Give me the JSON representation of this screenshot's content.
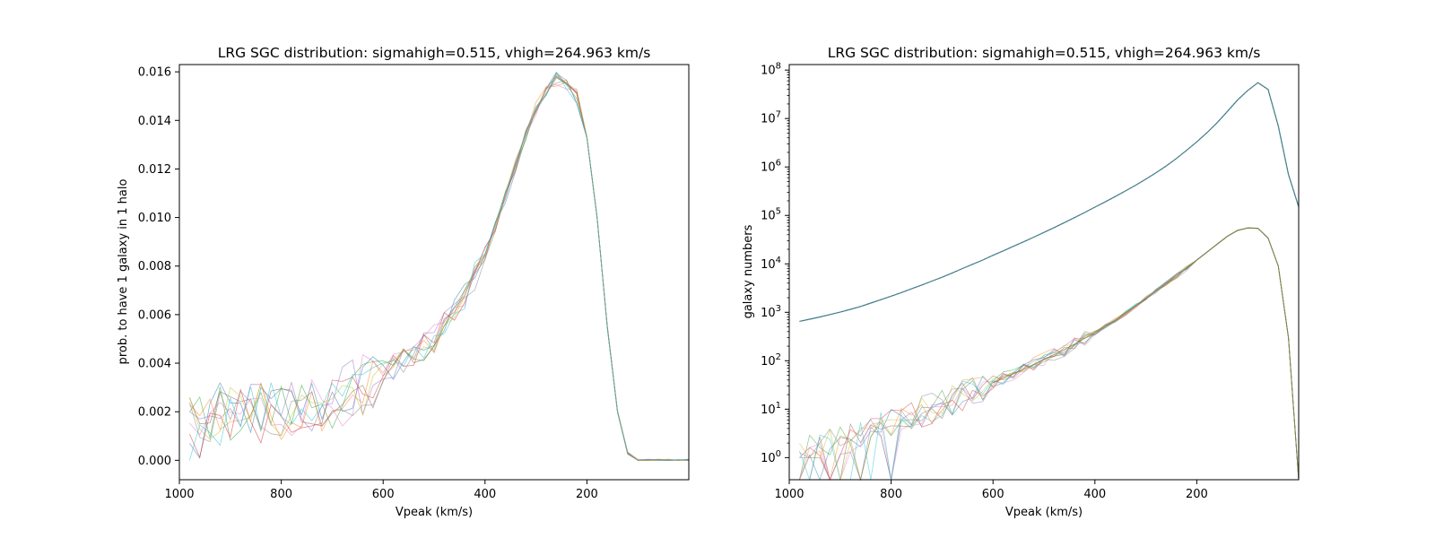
{
  "chart_data": [
    {
      "type": "line",
      "title": "LRG SGC distribution: sigmahigh=0.515, vhigh=264.963 km/s",
      "xlabel": "Vpeak (km/s)",
      "ylabel": "prob. to have 1 galaxy in 1 halo",
      "xlim": [
        1000,
        0
      ],
      "ylim": [
        -0.0008,
        0.0163
      ],
      "yscale": "linear",
      "grid": false,
      "x_ticks": [
        1000,
        800,
        600,
        400,
        200
      ],
      "y_ticks": [
        0.0,
        0.002,
        0.004,
        0.006,
        0.008,
        0.01,
        0.012,
        0.014,
        0.016
      ],
      "y_tick_labels": [
        "0.000",
        "0.002",
        "0.004",
        "0.006",
        "0.008",
        "0.010",
        "0.012",
        "0.014",
        "0.016"
      ],
      "x": [
        980,
        960,
        940,
        920,
        900,
        880,
        860,
        840,
        820,
        800,
        780,
        760,
        740,
        720,
        700,
        680,
        660,
        640,
        620,
        600,
        580,
        560,
        540,
        520,
        500,
        480,
        460,
        440,
        420,
        400,
        380,
        360,
        340,
        320,
        300,
        280,
        260,
        240,
        220,
        200,
        180,
        160,
        140,
        120,
        100,
        80,
        60,
        40,
        20,
        0
      ],
      "mean": [
        0.0018,
        0.0021,
        0.002,
        0.0019,
        0.0019,
        0.0019,
        0.002,
        0.002,
        0.002,
        0.0021,
        0.0022,
        0.0023,
        0.0024,
        0.0025,
        0.0026,
        0.0027,
        0.0029,
        0.0031,
        0.0033,
        0.0035,
        0.0038,
        0.0041,
        0.0044,
        0.0047,
        0.005,
        0.0055,
        0.0061,
        0.0068,
        0.0076,
        0.0085,
        0.0096,
        0.0108,
        0.0121,
        0.0134,
        0.0145,
        0.0153,
        0.0157,
        0.0155,
        0.015,
        0.0133,
        0.01,
        0.0055,
        0.002,
        0.0003,
        0.0,
        0.0,
        0.0,
        0.0,
        0.0,
        0.0
      ],
      "n_realizations": 10,
      "series_colors": [
        "#1f77b4",
        "#ff7f0e",
        "#2ca02c",
        "#d62728",
        "#9467bd",
        "#8c564b",
        "#e377c2",
        "#7f7f7f",
        "#bcbd22",
        "#17becf"
      ]
    },
    {
      "type": "line",
      "title": "LRG SGC distribution: sigmahigh=0.515, vhigh=264.963 km/s",
      "xlabel": "Vpeak (km/s)",
      "ylabel": "galaxy numbers",
      "xlim": [
        1000,
        0
      ],
      "ylim": [
        0.35,
        130000000
      ],
      "yscale": "log",
      "grid": false,
      "x_ticks": [
        1000,
        800,
        600,
        400,
        200
      ],
      "y_ticks": [
        1,
        10,
        100,
        1000,
        10000,
        100000,
        1000000,
        10000000,
        100000000
      ],
      "y_tick_exponents": [
        "0",
        "1",
        "2",
        "3",
        "4",
        "5",
        "6",
        "7",
        "8"
      ],
      "x": [
        980,
        960,
        940,
        920,
        900,
        880,
        860,
        840,
        820,
        800,
        780,
        760,
        740,
        720,
        700,
        680,
        660,
        640,
        620,
        600,
        580,
        560,
        540,
        520,
        500,
        480,
        460,
        440,
        420,
        400,
        380,
        360,
        340,
        320,
        300,
        280,
        260,
        240,
        220,
        200,
        180,
        160,
        140,
        120,
        100,
        80,
        60,
        40,
        20,
        0
      ],
      "halo_counts": [
        650,
        720,
        800,
        900,
        1010,
        1150,
        1320,
        1550,
        1820,
        2150,
        2550,
        3050,
        3650,
        4400,
        5300,
        6500,
        8000,
        9800,
        12000,
        15000,
        18500,
        23000,
        28500,
        35500,
        44500,
        56000,
        71000,
        90000,
        115000,
        148000,
        190000,
        245000,
        320000,
        420000,
        560000,
        760000,
        1050000,
        1500000,
        2200000,
        3300000,
        5100000,
        8200000,
        14000000,
        24000000,
        38000000,
        55000000,
        40000000,
        7000000,
        700000,
        150000
      ],
      "galaxy_counts_mean": [
        1.2,
        1.4,
        1.7,
        2.0,
        2.3,
        2.7,
        3.2,
        3.8,
        4.5,
        5.3,
        6.3,
        7.5,
        9.0,
        10.7,
        12.8,
        15.5,
        18.8,
        23.0,
        28.5,
        35.0,
        43.5,
        54.0,
        67.0,
        84.0,
        106.0,
        134.0,
        170.0,
        220.0,
        290.0,
        380.0,
        510.0,
        690.0,
        960.0,
        1350.0,
        1900.0,
        2700.0,
        3900.0,
        5600.0,
        8100.0,
        12000.0,
        17500.0,
        25500.0,
        37000.0,
        49000.0,
        55000.0,
        54000.0,
        34000.0,
        9000.0,
        300.0,
        0.0
      ],
      "n_realizations": 10,
      "series_colors": [
        "#1f77b4",
        "#ff7f0e",
        "#2ca02c",
        "#d62728",
        "#9467bd",
        "#8c564b",
        "#e377c2",
        "#7f7f7f",
        "#bcbd22",
        "#17becf"
      ]
    }
  ]
}
